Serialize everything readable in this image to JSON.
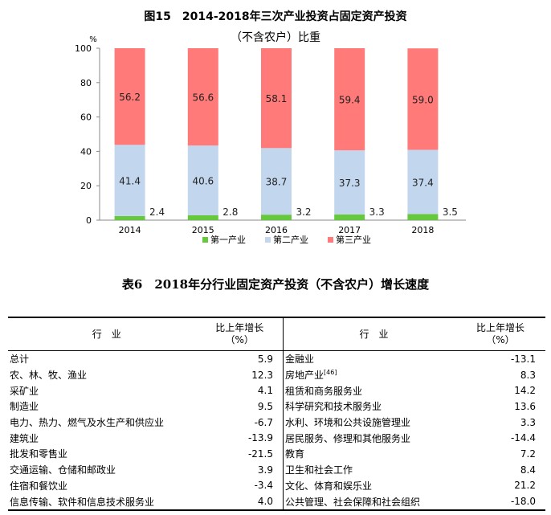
{
  "chart_data": {
    "type": "bar",
    "title": "图15　2014-2018年三次产业投资占固定资产投资",
    "subtitle": "（不含农户）比重",
    "unit": "%",
    "categories": [
      "2014",
      "2015",
      "2016",
      "2017",
      "2018"
    ],
    "ylim": [
      0,
      100
    ],
    "yticks": [
      "0",
      "20",
      "40",
      "60",
      "80",
      "100"
    ],
    "series": [
      {
        "name": "第一产业",
        "color": "#66c83c",
        "values": [
          2.4,
          2.8,
          3.2,
          3.3,
          3.5
        ]
      },
      {
        "name": "第二产业",
        "color": "#c2d6ee",
        "values": [
          41.4,
          40.6,
          38.7,
          37.3,
          37.4
        ]
      },
      {
        "name": "第三产业",
        "color": "#ff7a78",
        "values": [
          56.2,
          56.6,
          58.1,
          59.4,
          59.0
        ]
      }
    ],
    "data_labels": [
      [
        "2.4",
        "2.8",
        "3.2",
        "3.3",
        "3.5"
      ],
      [
        "41.4",
        "40.6",
        "38.7",
        "37.3",
        "37.4"
      ],
      [
        "56.2",
        "56.6",
        "58.1",
        "59.4",
        "59.0"
      ]
    ],
    "stacked": true,
    "legend_position": "bottom"
  },
  "table": {
    "title": "表6　2018年分行业固定资产投资（不含农户）增长速度",
    "header_industry": "行　业",
    "header_growth_line1": "比上年增长",
    "header_growth_line2": "（%）",
    "rows": [
      {
        "l_name": "总计",
        "l_val": "5.9",
        "r_name": "金融业",
        "r_val": "-13.1"
      },
      {
        "l_name": "农、林、牧、渔业",
        "l_val": "12.3",
        "r_name": "房地产业",
        "r_note": "[46]",
        "r_val": "8.3"
      },
      {
        "l_name": "采矿业",
        "l_val": "4.1",
        "r_name": "租赁和商务服务业",
        "r_val": "14.2"
      },
      {
        "l_name": "制造业",
        "l_val": "9.5",
        "r_name": "科学研究和技术服务业",
        "r_val": "13.6"
      },
      {
        "l_name": "电力、热力、燃气及水生产和供应业",
        "l_val": "-6.7",
        "r_name": "水利、环境和公共设施管理业",
        "r_val": "3.3"
      },
      {
        "l_name": "建筑业",
        "l_val": "-13.9",
        "r_name": "居民服务、修理和其他服务业",
        "r_val": "-14.4"
      },
      {
        "l_name": "批发和零售业",
        "l_val": "-21.5",
        "r_name": "教育",
        "r_val": "7.2"
      },
      {
        "l_name": "交通运输、仓储和邮政业",
        "l_val": "3.9",
        "r_name": "卫生和社会工作",
        "r_val": "8.4"
      },
      {
        "l_name": "住宿和餐饮业",
        "l_val": "-3.4",
        "r_name": "文化、体育和娱乐业",
        "r_val": "21.2"
      },
      {
        "l_name": "信息传输、软件和信息技术服务业",
        "l_val": "4.0",
        "r_name": "公共管理、社会保障和社会组织",
        "r_val": "-18.0"
      }
    ]
  }
}
